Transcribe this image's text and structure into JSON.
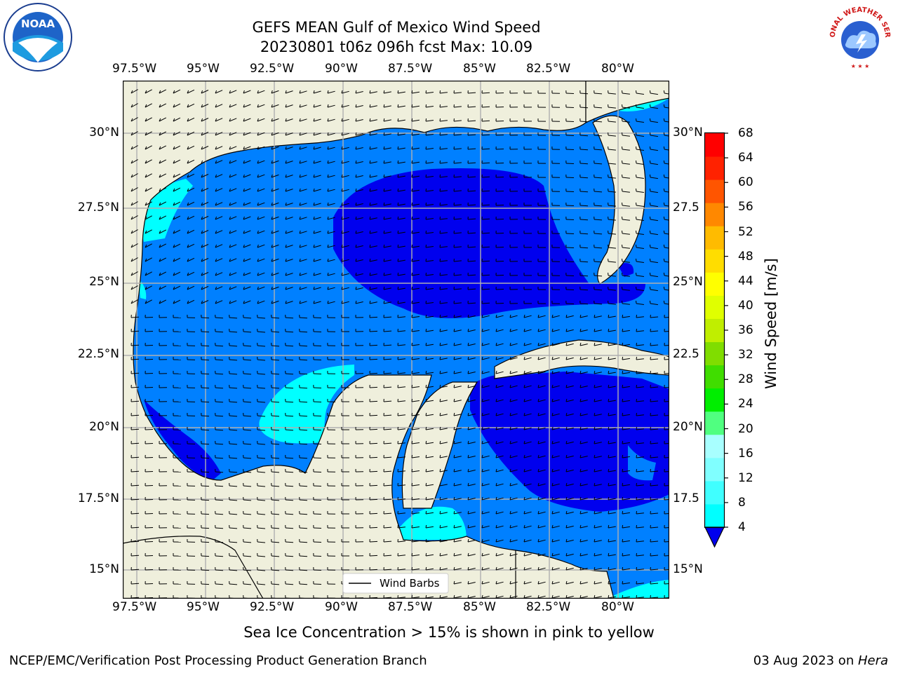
{
  "title": {
    "line1": "GEFS MEAN Gulf of Mexico Wind Speed",
    "line2": "20230801 t06z 096h fcst   Max: 10.09"
  },
  "map": {
    "lon_ticks": [
      "97.5°W",
      "95°W",
      "92.5°W",
      "90°W",
      "87.5°W",
      "85°W",
      "82.5°W",
      "80°W"
    ],
    "lat_ticks_left": [
      "30°N",
      "27.5°N",
      "25°N",
      "22.5°N",
      "20°N",
      "17.5°N",
      "15°N"
    ],
    "lat_ticks_right": [
      "30°N",
      "27.5",
      "25°N",
      "22.5",
      "20°N",
      "17.5",
      "15°N"
    ],
    "lon_range": [
      -98,
      -78.2
    ],
    "lat_range": [
      14,
      31.6
    ],
    "grid": true,
    "colors": {
      "land": "#efefdc",
      "ocean_4_8": "#0080ff",
      "ocean_0_4": "#0000ee",
      "ocean_8_12": "#00ffff",
      "grid": "#b0b0b0"
    }
  },
  "legend": {
    "label": "Wind Barbs",
    "placement": "lower-center"
  },
  "colorbar": {
    "label": "Wind Speed [m/s]",
    "ticks": [
      "68",
      "64",
      "60",
      "56",
      "52",
      "48",
      "44",
      "40",
      "36",
      "32",
      "28",
      "24",
      "20",
      "16",
      "12",
      "8",
      "4"
    ],
    "colors": [
      "#0080ff",
      "#00ffff",
      "#40ffff",
      "#80ffff",
      "#a8ffff",
      "#50ff80",
      "#00ee00",
      "#40dd00",
      "#80dd00",
      "#c0ee00",
      "#e0ff00",
      "#ffff00",
      "#ffdd00",
      "#ffbb00",
      "#ff8800",
      "#ff5500",
      "#ff2200",
      "#ff0000"
    ]
  },
  "chart_data": {
    "type": "heatmap",
    "title": "GEFS MEAN Gulf of Mexico Wind Speed",
    "subtitle": "20230801 t06z 096h fcst   Max: 10.09",
    "xlabel": "",
    "ylabel": "",
    "colorbar_label": "Wind Speed [m/s]",
    "levels": [
      4,
      8,
      12,
      16,
      20,
      24,
      28,
      32,
      36,
      40,
      44,
      48,
      52,
      56,
      60,
      64,
      68
    ],
    "max_value": 10.09,
    "legend": [
      "Wind Barbs"
    ]
  },
  "caption": "Sea Ice Concentration > 15% is shown in pink to yellow",
  "footer": {
    "left": "NCEP/EMC/Verification Post Processing Product Generation Branch",
    "right_date": "03 Aug 2023 on ",
    "right_host": "Hera"
  },
  "logos": {
    "left": "NOAA",
    "right": "NATIONAL WEATHER SERVICE"
  }
}
